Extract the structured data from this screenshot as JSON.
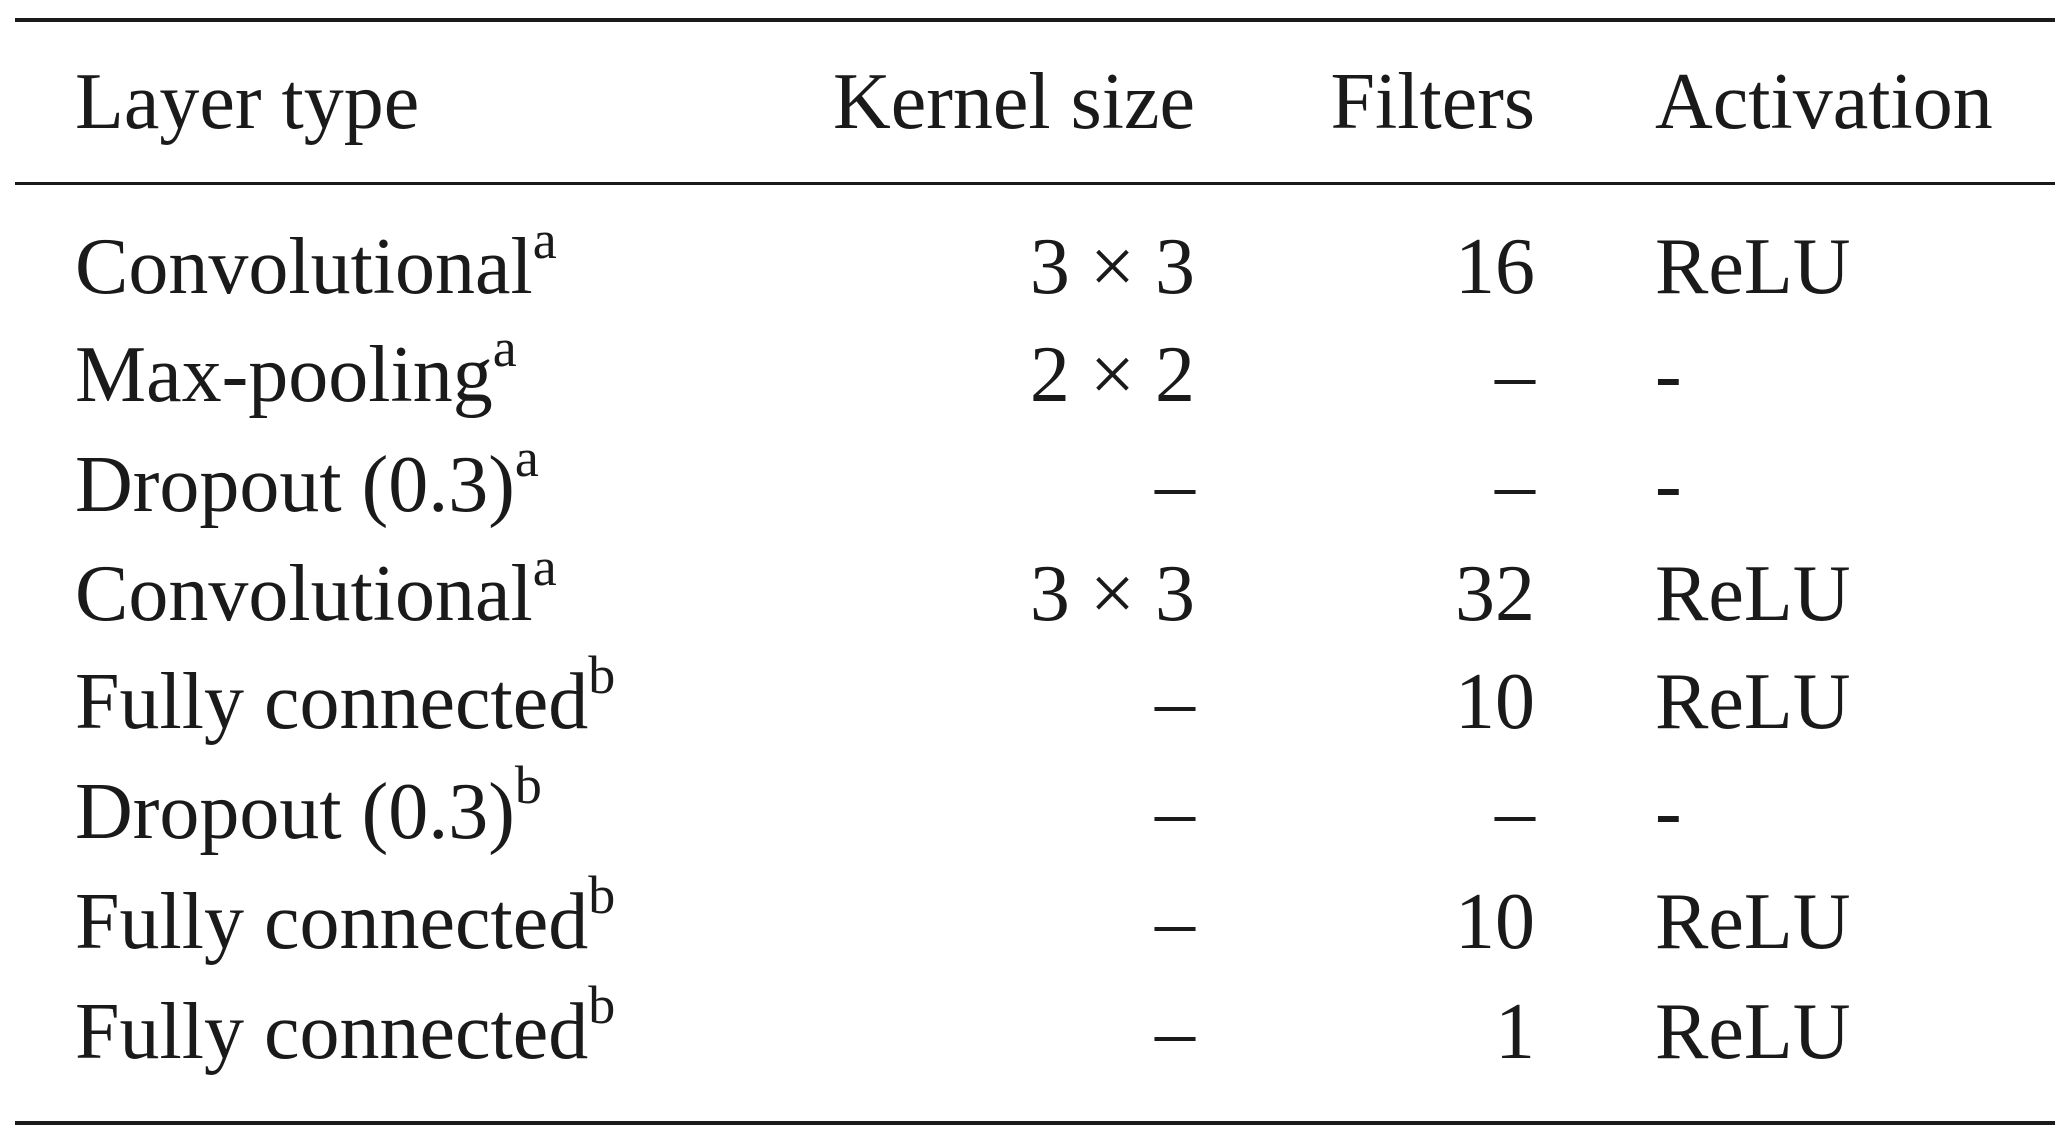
{
  "table": {
    "headers": {
      "layer_type": "Layer type",
      "kernel_size": "Kernel size",
      "filters": "Filters",
      "activation": "Activation"
    },
    "rows": [
      {
        "layer": "Convolutional",
        "note": "a",
        "kernel": "3 × 3",
        "filters": "16",
        "activation": "ReLU"
      },
      {
        "layer": "Max-pooling",
        "note": "a",
        "kernel": "2 × 2",
        "filters": "–",
        "activation": "-"
      },
      {
        "layer": "Dropout (0.3)",
        "note": "a",
        "kernel": "–",
        "filters": "–",
        "activation": "-"
      },
      {
        "layer": "Convolutional",
        "note": "a",
        "kernel": "3 × 3",
        "filters": "32",
        "activation": "ReLU"
      },
      {
        "layer": "Fully connected",
        "note": "b",
        "kernel": "–",
        "filters": "10",
        "activation": "ReLU"
      },
      {
        "layer": "Dropout (0.3)",
        "note": "b",
        "kernel": "–",
        "filters": "–",
        "activation": "-"
      },
      {
        "layer": "Fully connected",
        "note": "b",
        "kernel": "–",
        "filters": "10",
        "activation": "ReLU"
      },
      {
        "layer": "Fully connected",
        "note": "b",
        "kernel": "–",
        "filters": "1",
        "activation": "ReLU"
      }
    ]
  }
}
